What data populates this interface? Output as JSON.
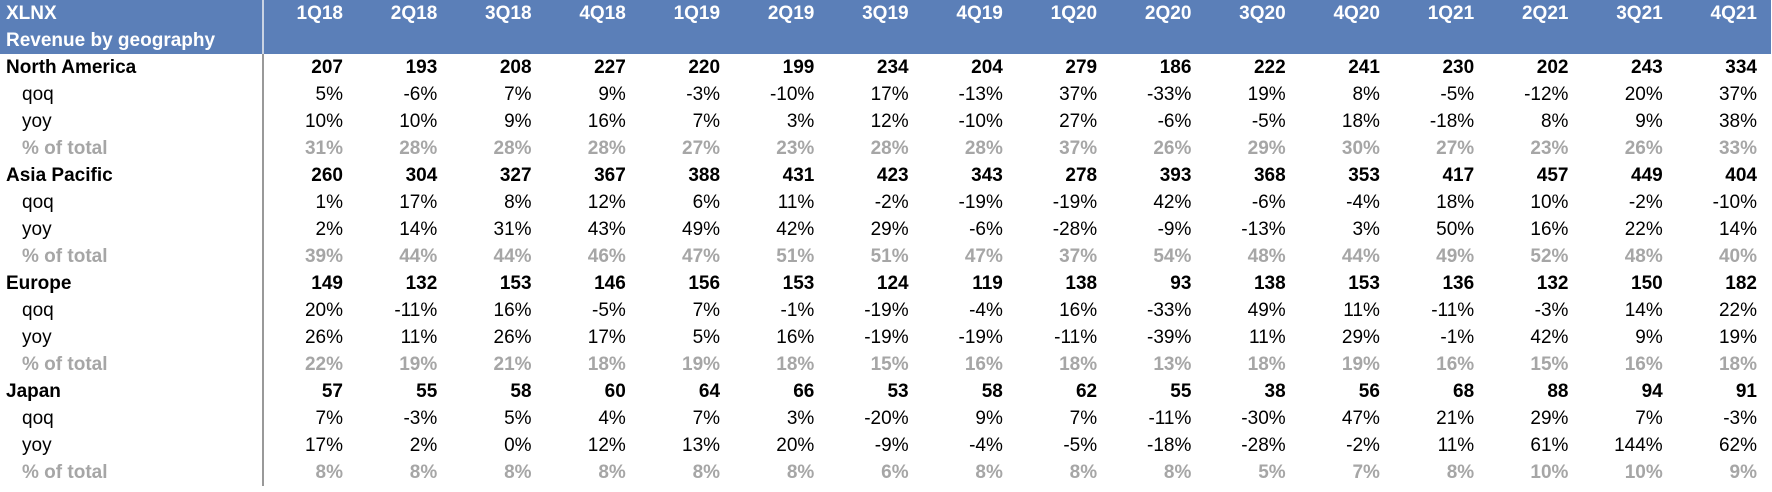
{
  "header": {
    "ticker": "XLNX",
    "quarters": [
      "1Q18",
      "2Q18",
      "3Q18",
      "4Q18",
      "1Q19",
      "2Q19",
      "3Q19",
      "4Q19",
      "1Q20",
      "2Q20",
      "3Q20",
      "4Q20",
      "1Q21",
      "2Q21",
      "3Q21",
      "4Q21"
    ]
  },
  "section": {
    "title": "Revenue by geography"
  },
  "rows": [
    {
      "kind": "region",
      "label": "North America",
      "values": [
        "207",
        "193",
        "208",
        "227",
        "220",
        "199",
        "234",
        "204",
        "279",
        "186",
        "222",
        "241",
        "230",
        "202",
        "243",
        "334"
      ]
    },
    {
      "kind": "metric",
      "label": "qoq",
      "values": [
        "5%",
        "-6%",
        "7%",
        "9%",
        "-3%",
        "-10%",
        "17%",
        "-13%",
        "37%",
        "-33%",
        "19%",
        "8%",
        "-5%",
        "-12%",
        "20%",
        "37%"
      ]
    },
    {
      "kind": "metric",
      "label": "yoy",
      "values": [
        "10%",
        "10%",
        "9%",
        "16%",
        "7%",
        "3%",
        "12%",
        "-10%",
        "27%",
        "-6%",
        "-5%",
        "18%",
        "-18%",
        "8%",
        "9%",
        "38%"
      ]
    },
    {
      "kind": "pct",
      "label": "% of total",
      "values": [
        "31%",
        "28%",
        "28%",
        "28%",
        "27%",
        "23%",
        "28%",
        "28%",
        "37%",
        "26%",
        "29%",
        "30%",
        "27%",
        "23%",
        "26%",
        "33%"
      ]
    },
    {
      "kind": "region",
      "label": "Asia Pacific",
      "values": [
        "260",
        "304",
        "327",
        "367",
        "388",
        "431",
        "423",
        "343",
        "278",
        "393",
        "368",
        "353",
        "417",
        "457",
        "449",
        "404"
      ]
    },
    {
      "kind": "metric",
      "label": "qoq",
      "values": [
        "1%",
        "17%",
        "8%",
        "12%",
        "6%",
        "11%",
        "-2%",
        "-19%",
        "-19%",
        "42%",
        "-6%",
        "-4%",
        "18%",
        "10%",
        "-2%",
        "-10%"
      ]
    },
    {
      "kind": "metric",
      "label": "yoy",
      "values": [
        "2%",
        "14%",
        "31%",
        "43%",
        "49%",
        "42%",
        "29%",
        "-6%",
        "-28%",
        "-9%",
        "-13%",
        "3%",
        "50%",
        "16%",
        "22%",
        "14%"
      ]
    },
    {
      "kind": "pct",
      "label": "% of total",
      "values": [
        "39%",
        "44%",
        "44%",
        "46%",
        "47%",
        "51%",
        "51%",
        "47%",
        "37%",
        "54%",
        "48%",
        "44%",
        "49%",
        "52%",
        "48%",
        "40%"
      ]
    },
    {
      "kind": "region",
      "label": "Europe",
      "values": [
        "149",
        "132",
        "153",
        "146",
        "156",
        "153",
        "124",
        "119",
        "138",
        "93",
        "138",
        "153",
        "136",
        "132",
        "150",
        "182"
      ]
    },
    {
      "kind": "metric",
      "label": "qoq",
      "values": [
        "20%",
        "-11%",
        "16%",
        "-5%",
        "7%",
        "-1%",
        "-19%",
        "-4%",
        "16%",
        "-33%",
        "49%",
        "11%",
        "-11%",
        "-3%",
        "14%",
        "22%"
      ]
    },
    {
      "kind": "metric",
      "label": "yoy",
      "values": [
        "26%",
        "11%",
        "26%",
        "17%",
        "5%",
        "16%",
        "-19%",
        "-19%",
        "-11%",
        "-39%",
        "11%",
        "29%",
        "-1%",
        "42%",
        "9%",
        "19%"
      ]
    },
    {
      "kind": "pct",
      "label": "% of total",
      "values": [
        "22%",
        "19%",
        "21%",
        "18%",
        "19%",
        "18%",
        "15%",
        "16%",
        "18%",
        "13%",
        "18%",
        "19%",
        "16%",
        "15%",
        "16%",
        "18%"
      ]
    },
    {
      "kind": "region",
      "label": "Japan",
      "values": [
        "57",
        "55",
        "58",
        "60",
        "64",
        "66",
        "53",
        "58",
        "62",
        "55",
        "38",
        "56",
        "68",
        "88",
        "94",
        "91"
      ]
    },
    {
      "kind": "metric",
      "label": "qoq",
      "values": [
        "7%",
        "-3%",
        "5%",
        "4%",
        "7%",
        "3%",
        "-20%",
        "9%",
        "7%",
        "-11%",
        "-30%",
        "47%",
        "21%",
        "29%",
        "7%",
        "-3%"
      ]
    },
    {
      "kind": "metric",
      "label": "yoy",
      "values": [
        "17%",
        "2%",
        "0%",
        "12%",
        "13%",
        "20%",
        "-9%",
        "-4%",
        "-5%",
        "-18%",
        "-28%",
        "-2%",
        "11%",
        "61%",
        "144%",
        "62%"
      ]
    },
    {
      "kind": "pct",
      "label": "% of total",
      "values": [
        "8%",
        "8%",
        "8%",
        "8%",
        "8%",
        "8%",
        "6%",
        "8%",
        "8%",
        "8%",
        "5%",
        "7%",
        "8%",
        "10%",
        "10%",
        "9%"
      ]
    }
  ]
}
